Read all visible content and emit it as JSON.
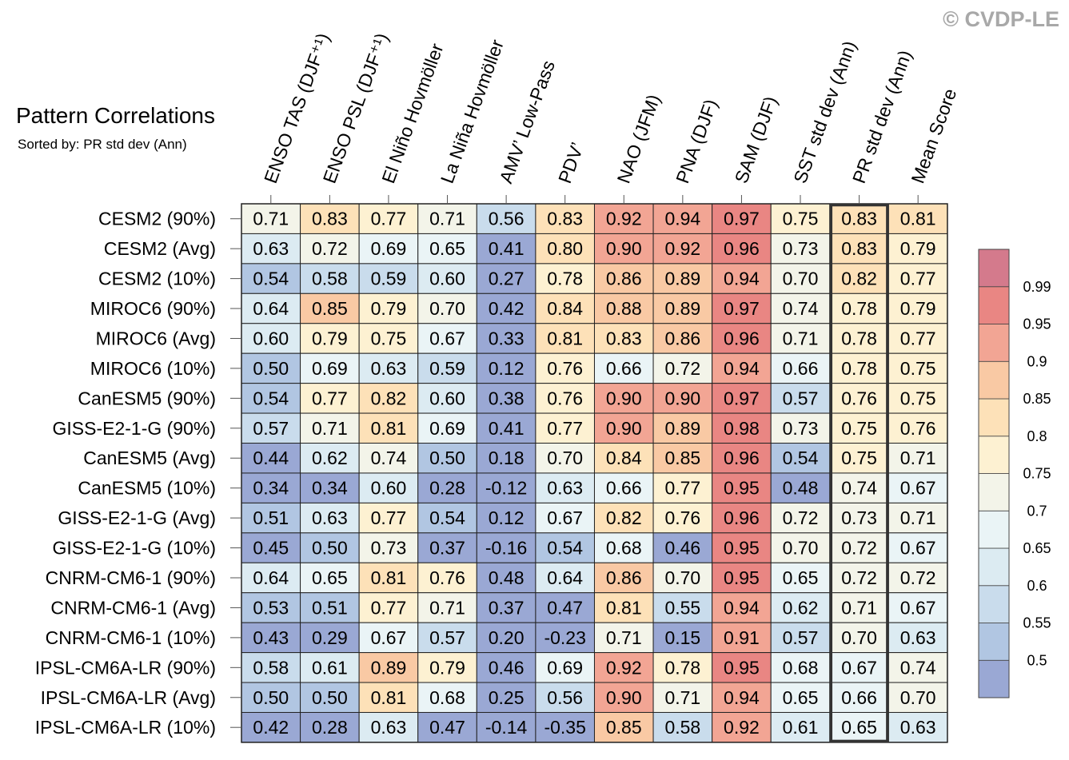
{
  "watermark": "© CVDP-LE",
  "chart_data": {
    "type": "heatmap",
    "title": "Pattern Correlations",
    "subtitle": "Sorted by: PR std dev (Ann)",
    "columns": [
      "ENSO TAS (DJF⁺¹)",
      "ENSO PSL (DJF⁺¹)",
      "El Niño Hovmöller",
      "La Niña Hovmöller",
      "AMV’ Low-Pass",
      "PDV’",
      "NAO (JFM)",
      "PNA (DJF)",
      "SAM (DJF)",
      "SST std dev (Ann)",
      "PR std dev (Ann)",
      "Mean Score"
    ],
    "highlighted_column": "PR std dev (Ann)",
    "rows": [
      "CESM2 (90%)",
      "CESM2 (Avg)",
      "CESM2 (10%)",
      "MIROC6 (90%)",
      "MIROC6 (Avg)",
      "MIROC6 (10%)",
      "CanESM5 (90%)",
      "GISS-E2-1-G (90%)",
      "CanESM5 (Avg)",
      "CanESM5 (10%)",
      "GISS-E2-1-G (Avg)",
      "GISS-E2-1-G (10%)",
      "CNRM-CM6-1 (90%)",
      "CNRM-CM6-1 (Avg)",
      "CNRM-CM6-1 (10%)",
      "IPSL-CM6A-LR (90%)",
      "IPSL-CM6A-LR (Avg)",
      "IPSL-CM6A-LR (10%)"
    ],
    "values": [
      [
        0.71,
        0.83,
        0.77,
        0.71,
        0.56,
        0.83,
        0.92,
        0.94,
        0.97,
        0.75,
        0.83,
        0.81
      ],
      [
        0.63,
        0.72,
        0.69,
        0.65,
        0.41,
        0.8,
        0.9,
        0.92,
        0.96,
        0.73,
        0.83,
        0.79
      ],
      [
        0.54,
        0.58,
        0.59,
        0.6,
        0.27,
        0.78,
        0.86,
        0.89,
        0.94,
        0.7,
        0.82,
        0.77
      ],
      [
        0.64,
        0.85,
        0.79,
        0.7,
        0.42,
        0.84,
        0.88,
        0.89,
        0.97,
        0.74,
        0.78,
        0.79
      ],
      [
        0.6,
        0.79,
        0.75,
        0.67,
        0.33,
        0.81,
        0.83,
        0.86,
        0.96,
        0.71,
        0.78,
        0.77
      ],
      [
        0.5,
        0.69,
        0.63,
        0.59,
        0.12,
        0.76,
        0.66,
        0.72,
        0.94,
        0.66,
        0.78,
        0.75
      ],
      [
        0.54,
        0.77,
        0.82,
        0.6,
        0.38,
        0.76,
        0.9,
        0.9,
        0.97,
        0.57,
        0.76,
        0.75
      ],
      [
        0.57,
        0.71,
        0.81,
        0.69,
        0.41,
        0.77,
        0.9,
        0.89,
        0.98,
        0.73,
        0.75,
        0.76
      ],
      [
        0.44,
        0.62,
        0.74,
        0.5,
        0.18,
        0.7,
        0.84,
        0.85,
        0.96,
        0.54,
        0.75,
        0.71
      ],
      [
        0.34,
        0.34,
        0.6,
        0.28,
        -0.12,
        0.63,
        0.66,
        0.77,
        0.95,
        0.48,
        0.74,
        0.67
      ],
      [
        0.51,
        0.63,
        0.77,
        0.54,
        0.12,
        0.67,
        0.82,
        0.76,
        0.96,
        0.72,
        0.73,
        0.71
      ],
      [
        0.45,
        0.5,
        0.73,
        0.37,
        -0.16,
        0.54,
        0.68,
        0.46,
        0.95,
        0.7,
        0.72,
        0.67
      ],
      [
        0.64,
        0.65,
        0.81,
        0.76,
        0.48,
        0.64,
        0.86,
        0.7,
        0.95,
        0.65,
        0.72,
        0.72
      ],
      [
        0.53,
        0.51,
        0.77,
        0.71,
        0.37,
        0.47,
        0.81,
        0.55,
        0.94,
        0.62,
        0.71,
        0.67
      ],
      [
        0.43,
        0.29,
        0.67,
        0.57,
        0.2,
        -0.23,
        0.71,
        0.15,
        0.91,
        0.57,
        0.7,
        0.63
      ],
      [
        0.58,
        0.61,
        0.89,
        0.79,
        0.46,
        0.69,
        0.92,
        0.78,
        0.95,
        0.68,
        0.67,
        0.74
      ],
      [
        0.5,
        0.5,
        0.81,
        0.68,
        0.25,
        0.56,
        0.9,
        0.71,
        0.94,
        0.65,
        0.66,
        0.7
      ],
      [
        0.42,
        0.28,
        0.63,
        0.47,
        -0.14,
        -0.35,
        0.85,
        0.58,
        0.92,
        0.61,
        0.65,
        0.63
      ]
    ],
    "colorbar": {
      "levels": [
        0.5,
        0.55,
        0.6,
        0.65,
        0.7,
        0.75,
        0.8,
        0.85,
        0.9,
        0.95,
        0.99
      ],
      "tick_labels": [
        "0.5",
        "0.55",
        "0.6",
        "0.65",
        "0.7",
        "0.75",
        "0.8",
        "0.85",
        "0.9",
        "0.95",
        "0.99"
      ],
      "colors": [
        "#9aa8d4",
        "#b1c6e2",
        "#c9dcec",
        "#dcebf2",
        "#eaf4f6",
        "#f3f4e9",
        "#fdf1d2",
        "#fde1b8",
        "#f9c9a4",
        "#f2a594",
        "#e98683",
        "#d47a8c"
      ]
    }
  }
}
